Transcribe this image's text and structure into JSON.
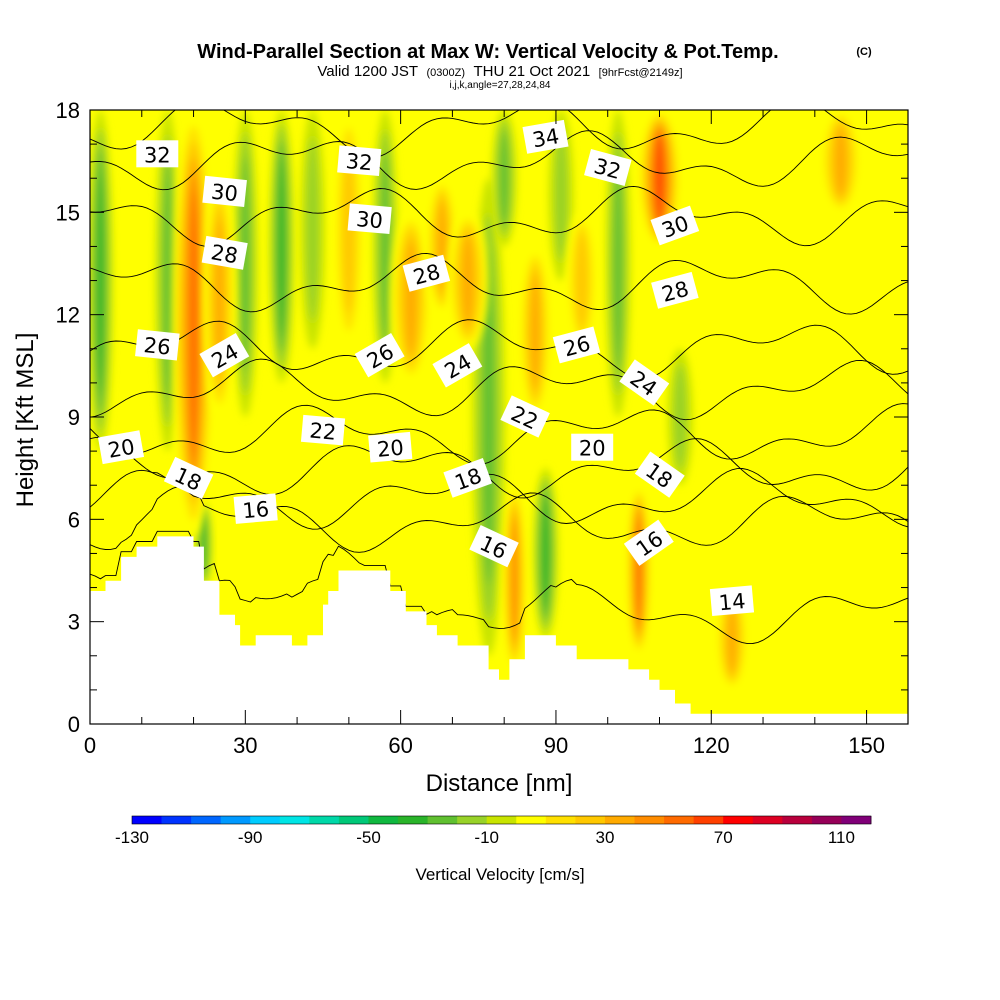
{
  "title": {
    "main": "Wind-Parallel Section at Max W: Vertical Velocity & Pot.Temp.",
    "copyright": "(C)",
    "valid_prefix": "Valid 1200 JST",
    "valid_utc": "(0300Z)",
    "valid_suffix": "THU 21 Oct 2021",
    "forecast": "[9hrFcst@2149z]",
    "indices": "i,j,k,angle=27,28,24,84"
  },
  "chart_data": {
    "type": "contour",
    "xlabel": "Distance [nm]",
    "ylabel": "Height [Kft MSL]",
    "xlim": [
      0,
      158
    ],
    "ylim": [
      0,
      18
    ],
    "x_ticks": [
      "0",
      "30",
      "60",
      "90",
      "120",
      "150"
    ],
    "y_ticks": [
      "0",
      "3",
      "6",
      "9",
      "12",
      "15",
      "18"
    ],
    "grid": false,
    "terrain_profile": [
      [
        0,
        3.9
      ],
      [
        3,
        3.9
      ],
      [
        3,
        4.2
      ],
      [
        6,
        4.2
      ],
      [
        6,
        4.9
      ],
      [
        9,
        4.9
      ],
      [
        9,
        5.2
      ],
      [
        13,
        5.2
      ],
      [
        13,
        5.5
      ],
      [
        20,
        5.5
      ],
      [
        20,
        5.2
      ],
      [
        22,
        5.2
      ],
      [
        22,
        4.2
      ],
      [
        25,
        4.2
      ],
      [
        25,
        3.2
      ],
      [
        28,
        3.2
      ],
      [
        28,
        2.9
      ],
      [
        29,
        2.9
      ],
      [
        29,
        2.3
      ],
      [
        32,
        2.3
      ],
      [
        32,
        2.6
      ],
      [
        39,
        2.6
      ],
      [
        39,
        2.3
      ],
      [
        42,
        2.3
      ],
      [
        42,
        2.6
      ],
      [
        45,
        2.6
      ],
      [
        45,
        3.5
      ],
      [
        46,
        3.5
      ],
      [
        46,
        3.9
      ],
      [
        48,
        3.9
      ],
      [
        48,
        4.5
      ],
      [
        58,
        4.5
      ],
      [
        58,
        3.9
      ],
      [
        61,
        3.9
      ],
      [
        61,
        3.3
      ],
      [
        65,
        3.3
      ],
      [
        65,
        2.9
      ],
      [
        67,
        2.9
      ],
      [
        67,
        2.6
      ],
      [
        71,
        2.6
      ],
      [
        71,
        2.3
      ],
      [
        77,
        2.3
      ],
      [
        77,
        1.6
      ],
      [
        79,
        1.6
      ],
      [
        79,
        1.3
      ],
      [
        81,
        1.3
      ],
      [
        81,
        1.9
      ],
      [
        84,
        1.9
      ],
      [
        84,
        2.6
      ],
      [
        90,
        2.6
      ],
      [
        90,
        2.3
      ],
      [
        94,
        2.3
      ],
      [
        94,
        1.9
      ],
      [
        104,
        1.9
      ],
      [
        104,
        1.6
      ],
      [
        108,
        1.6
      ],
      [
        108,
        1.3
      ],
      [
        110,
        1.3
      ],
      [
        110,
        1.0
      ],
      [
        113,
        1.0
      ],
      [
        113,
        0.6
      ],
      [
        116,
        0.6
      ],
      [
        116,
        0.3
      ],
      [
        158,
        0.3
      ]
    ],
    "vertical_velocity": {
      "colorbar_title": "Vertical Velocity [cm/s]",
      "colorbar_ticks": [
        "-130",
        "-90",
        "-50",
        "-10",
        "30",
        "70",
        "110"
      ],
      "range": [
        -130,
        120
      ],
      "bin_width": 10,
      "colors": [
        "#0000ff",
        "#0033ff",
        "#0066ff",
        "#0099ff",
        "#00ccff",
        "#00e5e5",
        "#00d8a8",
        "#00c878",
        "#10b840",
        "#2ab42a",
        "#60c030",
        "#98d228",
        "#c8e400",
        "#ffff00",
        "#ffe000",
        "#ffc800",
        "#ffaa00",
        "#ff8c00",
        "#ff6a00",
        "#ff4000",
        "#ff0000",
        "#dd0022",
        "#b8003c",
        "#960058",
        "#800078"
      ]
    },
    "updraft_bands": [
      {
        "x": 20,
        "w": 5,
        "y0": 5.5,
        "y1": 18,
        "peak": 60
      },
      {
        "x": 25,
        "w": 4,
        "y0": 9,
        "y1": 16,
        "peak": 40
      },
      {
        "x": 50,
        "w": 4,
        "y0": 11,
        "y1": 18,
        "peak": 30
      },
      {
        "x": 62,
        "w": 5,
        "y0": 10,
        "y1": 15,
        "peak": 40
      },
      {
        "x": 68,
        "w": 4,
        "y0": 12,
        "y1": 16,
        "peak": 40
      },
      {
        "x": 73,
        "w": 5,
        "y0": 11,
        "y1": 15,
        "peak": 40
      },
      {
        "x": 82,
        "w": 3,
        "y0": 1.5,
        "y1": 7,
        "peak": 50
      },
      {
        "x": 86,
        "w": 4,
        "y0": 9,
        "y1": 14,
        "peak": 40
      },
      {
        "x": 95,
        "w": 4,
        "y0": 11,
        "y1": 15,
        "peak": 30
      },
      {
        "x": 106,
        "w": 3,
        "y0": 2,
        "y1": 7,
        "peak": 60
      },
      {
        "x": 110,
        "w": 5,
        "y0": 14,
        "y1": 18,
        "peak": 70
      },
      {
        "x": 124,
        "w": 4,
        "y0": 1,
        "y1": 4,
        "peak": 40
      },
      {
        "x": 145,
        "w": 5,
        "y0": 15,
        "y1": 18,
        "peak": 40
      }
    ],
    "downdraft_bands": [
      {
        "x": 2,
        "w": 3,
        "y0": 8,
        "y1": 18,
        "peak": -40
      },
      {
        "x": 15,
        "w": 3,
        "y0": 8,
        "y1": 18,
        "peak": -30
      },
      {
        "x": 22,
        "w": 2,
        "y0": 4,
        "y1": 6.5,
        "peak": -40
      },
      {
        "x": 30,
        "w": 3,
        "y0": 9,
        "y1": 18,
        "peak": -30
      },
      {
        "x": 37,
        "w": 3,
        "y0": 10,
        "y1": 18,
        "peak": -40
      },
      {
        "x": 43,
        "w": 3,
        "y0": 11,
        "y1": 18,
        "peak": -20
      },
      {
        "x": 57,
        "w": 3,
        "y0": 10,
        "y1": 18,
        "peak": -30
      },
      {
        "x": 77,
        "w": 4,
        "y0": 2,
        "y1": 16,
        "peak": -30
      },
      {
        "x": 80,
        "w": 3,
        "y0": 14,
        "y1": 18,
        "peak": -30
      },
      {
        "x": 88,
        "w": 3,
        "y0": 2.5,
        "y1": 7.5,
        "peak": -40
      },
      {
        "x": 91,
        "w": 3,
        "y0": 13,
        "y1": 18,
        "peak": -20
      },
      {
        "x": 102,
        "w": 3,
        "y0": 9,
        "y1": 18,
        "peak": -30
      },
      {
        "x": 114,
        "w": 3,
        "y0": 7,
        "y1": 11,
        "peak": -20
      }
    ],
    "isentropes": [
      {
        "value": 14,
        "label": "14",
        "label_at": [
          124,
          3.6
        ],
        "base": 3.2
      },
      {
        "value": 16,
        "label": "16",
        "label_at": [
          32,
          6.3
        ],
        "base": 5.9
      },
      {
        "value": 18,
        "label": "18",
        "label_at": [
          19,
          7.2
        ],
        "base": 6.6
      },
      {
        "value": 20,
        "label": "20",
        "label_at": [
          6,
          8.1
        ],
        "base": 7.5
      },
      {
        "value": 22,
        "label": "22",
        "label_at": [
          45,
          8.6
        ],
        "base": 8.5
      },
      {
        "value": 24,
        "label": "24",
        "label_at": [
          25,
          10.8
        ],
        "base": 9.8
      },
      {
        "value": 26,
        "label": "26",
        "label_at": [
          13,
          11.1
        ],
        "base": 11.0
      },
      {
        "value": 28,
        "label": "28",
        "label_at": [
          26,
          13.8
        ],
        "base": 12.9
      },
      {
        "value": 30,
        "label": "30",
        "label_at": [
          26,
          15.6
        ],
        "base": 14.9
      },
      {
        "value": 32,
        "label": "32",
        "label_at": [
          13,
          16.7
        ],
        "base": 16.5
      },
      {
        "value": 34,
        "label": "34",
        "label_at": [
          88,
          17.2
        ],
        "base": 17.5
      }
    ],
    "contour_labels": [
      {
        "text": "32",
        "x": 13,
        "y": 16.7,
        "rot": 0
      },
      {
        "text": "30",
        "x": 26,
        "y": 15.6,
        "rot": 6
      },
      {
        "text": "28",
        "x": 26,
        "y": 13.8,
        "rot": 10
      },
      {
        "text": "26",
        "x": 13,
        "y": 11.1,
        "rot": 6
      },
      {
        "text": "24",
        "x": 26,
        "y": 10.8,
        "rot": -30
      },
      {
        "text": "20",
        "x": 6,
        "y": 8.1,
        "rot": -10
      },
      {
        "text": "18",
        "x": 19,
        "y": 7.2,
        "rot": 25
      },
      {
        "text": "16",
        "x": 32,
        "y": 6.3,
        "rot": -5
      },
      {
        "text": "32",
        "x": 52,
        "y": 16.5,
        "rot": 5
      },
      {
        "text": "30",
        "x": 54,
        "y": 14.8,
        "rot": 5
      },
      {
        "text": "22",
        "x": 45,
        "y": 8.6,
        "rot": 5
      },
      {
        "text": "26",
        "x": 56,
        "y": 10.8,
        "rot": -30
      },
      {
        "text": "28",
        "x": 65,
        "y": 13.2,
        "rot": -15
      },
      {
        "text": "24",
        "x": 71,
        "y": 10.5,
        "rot": -30
      },
      {
        "text": "20",
        "x": 58,
        "y": 8.1,
        "rot": -5
      },
      {
        "text": "18",
        "x": 73,
        "y": 7.2,
        "rot": -20
      },
      {
        "text": "16",
        "x": 78,
        "y": 5.2,
        "rot": 25
      },
      {
        "text": "34",
        "x": 88,
        "y": 17.2,
        "rot": -10
      },
      {
        "text": "32",
        "x": 100,
        "y": 16.3,
        "rot": 15
      },
      {
        "text": "30",
        "x": 113,
        "y": 14.6,
        "rot": -20
      },
      {
        "text": "28",
        "x": 113,
        "y": 12.7,
        "rot": -15
      },
      {
        "text": "26",
        "x": 94,
        "y": 11.1,
        "rot": -15
      },
      {
        "text": "22",
        "x": 84,
        "y": 9.0,
        "rot": 25
      },
      {
        "text": "20",
        "x": 97,
        "y": 8.1,
        "rot": 0
      },
      {
        "text": "24",
        "x": 107,
        "y": 10.0,
        "rot": 35
      },
      {
        "text": "18",
        "x": 110,
        "y": 7.3,
        "rot": 35
      },
      {
        "text": "16",
        "x": 108,
        "y": 5.3,
        "rot": -35
      },
      {
        "text": "14",
        "x": 124,
        "y": 3.6,
        "rot": -5
      }
    ]
  }
}
